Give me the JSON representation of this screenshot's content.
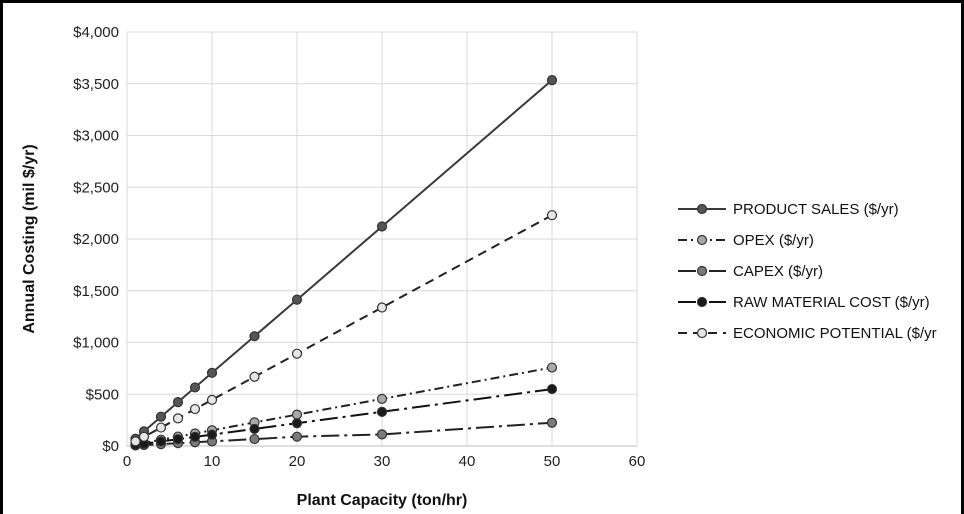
{
  "chart_data": {
    "type": "line",
    "title": "",
    "xlabel": "Plant Capacity (ton/hr)",
    "ylabel": "Annual Costing (mil $/yr)",
    "xlim": [
      0,
      60
    ],
    "ylim": [
      0,
      4000
    ],
    "x_ticks": [
      "0",
      "10",
      "20",
      "30",
      "40",
      "50",
      "60"
    ],
    "y_ticks": [
      "$0",
      "$500",
      "$1,000",
      "$1,500",
      "$2,000",
      "$2,500",
      "$3,000",
      "$3,500",
      "$4,000"
    ],
    "grid": true,
    "legend_position": "right",
    "x": [
      1,
      2,
      4,
      6,
      8,
      10,
      15,
      20,
      30,
      50
    ],
    "series": [
      {
        "name": "PRODUCT SALES ($/yr)",
        "values": [
          70,
          141,
          283,
          424,
          566,
          707,
          1061,
          1414,
          2121,
          3535
        ],
        "color": "#3a3a3a",
        "marker_fill": "#555555",
        "dash": ""
      },
      {
        "name": "OPEX ($/yr)",
        "values": [
          15,
          30,
          61,
          91,
          121,
          152,
          228,
          303,
          455,
          758
        ],
        "color": "#222222",
        "marker_fill": "#a8a8a8",
        "dash": "9,4,2,4"
      },
      {
        "name": "CAPEX ($/yr)",
        "values": [
          5,
          9,
          18,
          27,
          36,
          45,
          67,
          90,
          112,
          225
        ],
        "color": "#222222",
        "marker_fill": "#7a7a7a",
        "dash": "18,5,3,5"
      },
      {
        "name": "RAW MATERIAL COST ($/yr)",
        "values": [
          11,
          22,
          44,
          66,
          88,
          110,
          165,
          220,
          330,
          550
        ],
        "color": "#111111",
        "marker_fill": "#1a1a1a",
        "dash": "18,5,3,5"
      },
      {
        "name": "ECONOMIC POTENTIAL ($/yr",
        "values": [
          45,
          89,
          178,
          267,
          357,
          446,
          669,
          892,
          1338,
          2230
        ],
        "color": "#222222",
        "marker_fill": "#e6e6e6",
        "dash": "9,6"
      }
    ]
  }
}
